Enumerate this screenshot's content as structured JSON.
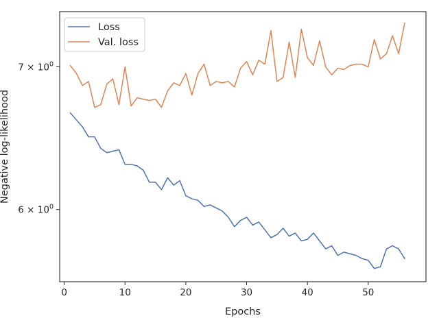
{
  "chart_data": {
    "type": "line",
    "title": "",
    "xlabel": "Epochs",
    "ylabel": "Negative log-likelihood",
    "yscale": "log",
    "xlim": [
      -0.75,
      59.5
    ],
    "ylim": [
      5.55,
      7.43
    ],
    "x_ticks": [
      0,
      10,
      20,
      30,
      40,
      50
    ],
    "x_tick_labels": [
      "0",
      "10",
      "20",
      "30",
      "40",
      "50"
    ],
    "y_ticks": [
      6,
      7
    ],
    "y_tick_labels": [
      {
        "base": "6 × 10",
        "exp": "0"
      },
      {
        "base": "7 × 10",
        "exp": "0"
      }
    ],
    "grid": false,
    "legend_position": "top-left",
    "x": [
      1,
      2,
      3,
      4,
      5,
      6,
      7,
      8,
      9,
      10,
      11,
      12,
      13,
      14,
      15,
      16,
      17,
      18,
      19,
      20,
      21,
      22,
      23,
      24,
      25,
      26,
      27,
      28,
      29,
      30,
      31,
      32,
      33,
      34,
      35,
      36,
      37,
      38,
      39,
      40,
      41,
      42,
      43,
      44,
      45,
      46,
      47,
      48,
      49,
      50,
      51,
      52,
      53,
      54,
      55,
      56
    ],
    "series": [
      {
        "name": "Loss",
        "color": "#4c72b0",
        "values": [
          6.66,
          6.61,
          6.56,
          6.49,
          6.49,
          6.41,
          6.38,
          6.39,
          6.4,
          6.3,
          6.3,
          6.29,
          6.26,
          6.18,
          6.18,
          6.13,
          6.21,
          6.16,
          6.19,
          6.09,
          6.07,
          6.06,
          6.02,
          6.03,
          6.01,
          5.99,
          5.95,
          5.89,
          5.93,
          5.95,
          5.9,
          5.92,
          5.87,
          5.82,
          5.84,
          5.88,
          5.83,
          5.85,
          5.8,
          5.81,
          5.85,
          5.8,
          5.75,
          5.77,
          5.71,
          5.73,
          5.72,
          5.71,
          5.69,
          5.68,
          5.63,
          5.64,
          5.75,
          5.77,
          5.75,
          5.69
        ]
      },
      {
        "name": "Val. loss",
        "color": "#dd8452",
        "values": [
          7.01,
          6.95,
          6.86,
          6.89,
          6.7,
          6.72,
          6.87,
          6.91,
          6.72,
          7.0,
          6.71,
          6.77,
          6.76,
          6.75,
          6.76,
          6.7,
          6.82,
          6.88,
          6.86,
          6.95,
          6.79,
          6.95,
          7.02,
          6.86,
          6.89,
          6.88,
          6.89,
          6.85,
          6.99,
          7.04,
          6.94,
          7.05,
          7.02,
          7.28,
          6.89,
          6.92,
          7.19,
          6.92,
          7.29,
          7.07,
          7.01,
          7.2,
          7.0,
          6.94,
          6.99,
          6.98,
          7.01,
          7.02,
          7.02,
          7.0,
          7.21,
          7.06,
          7.1,
          7.24,
          7.1,
          7.34
        ]
      }
    ]
  }
}
